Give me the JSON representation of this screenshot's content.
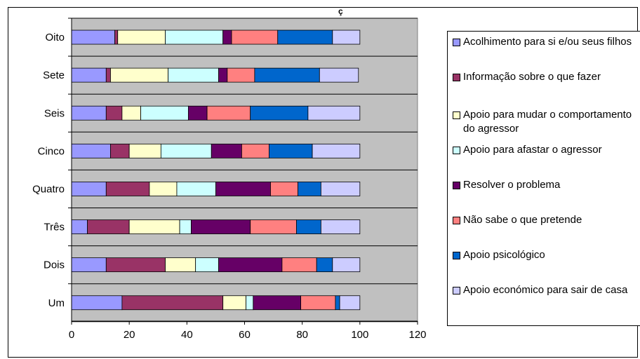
{
  "chart_data": {
    "type": "bar",
    "orientation": "horizontal",
    "stacked": true,
    "title": "ç",
    "categories": [
      "Um",
      "Dois",
      "Três",
      "Quatro",
      "Cinco",
      "Seis",
      "Sete",
      "Oito"
    ],
    "series": [
      {
        "name": "Acolhimento para si e/ou seus filhos",
        "color": "#9999ff",
        "values": [
          17.5,
          12,
          5.5,
          12,
          13.5,
          12,
          12,
          15
        ]
      },
      {
        "name": "Informação sobre o que fazer",
        "color": "#993366",
        "values": [
          35,
          20.5,
          14.5,
          15,
          6.5,
          5.5,
          1.5,
          1
        ]
      },
      {
        "name": "Apoio para mudar o comportamento do agressor",
        "color": "#ffffcc",
        "values": [
          8,
          10.5,
          17.5,
          9.5,
          11,
          6.5,
          20,
          16.5
        ]
      },
      {
        "name": "Apoio para afastar o agressor",
        "color": "#ccffff",
        "values": [
          2.5,
          8,
          4,
          13.5,
          17.5,
          16.5,
          17.5,
          20
        ]
      },
      {
        "name": "Resolver o problema",
        "color": "#660066",
        "values": [
          16.5,
          22,
          20.5,
          19,
          10.5,
          6.5,
          3,
          3
        ]
      },
      {
        "name": "Não sabe o que pretende",
        "color": "#ff8080",
        "values": [
          12,
          12,
          16,
          9.5,
          9.5,
          15,
          9.5,
          16
        ]
      },
      {
        "name": "Apoio psicológico",
        "color": "#0066cc",
        "values": [
          1.5,
          5.5,
          8.5,
          8,
          15,
          20,
          22.5,
          19
        ]
      },
      {
        "name": "Apoio económico para sair de casa",
        "color": "#ccccff",
        "values": [
          7,
          9.5,
          13.5,
          13.5,
          16.5,
          18,
          13.5,
          9.5
        ]
      }
    ],
    "xlim": [
      0,
      120
    ],
    "xticks": [
      0,
      20,
      40,
      60,
      80,
      100,
      120
    ],
    "xtick_labels": [
      "0",
      "20",
      "40",
      "60",
      "80",
      "100",
      "120"
    ],
    "grid": "horizontal",
    "plot_background": "#c0c0c0",
    "legend_position": "right"
  }
}
